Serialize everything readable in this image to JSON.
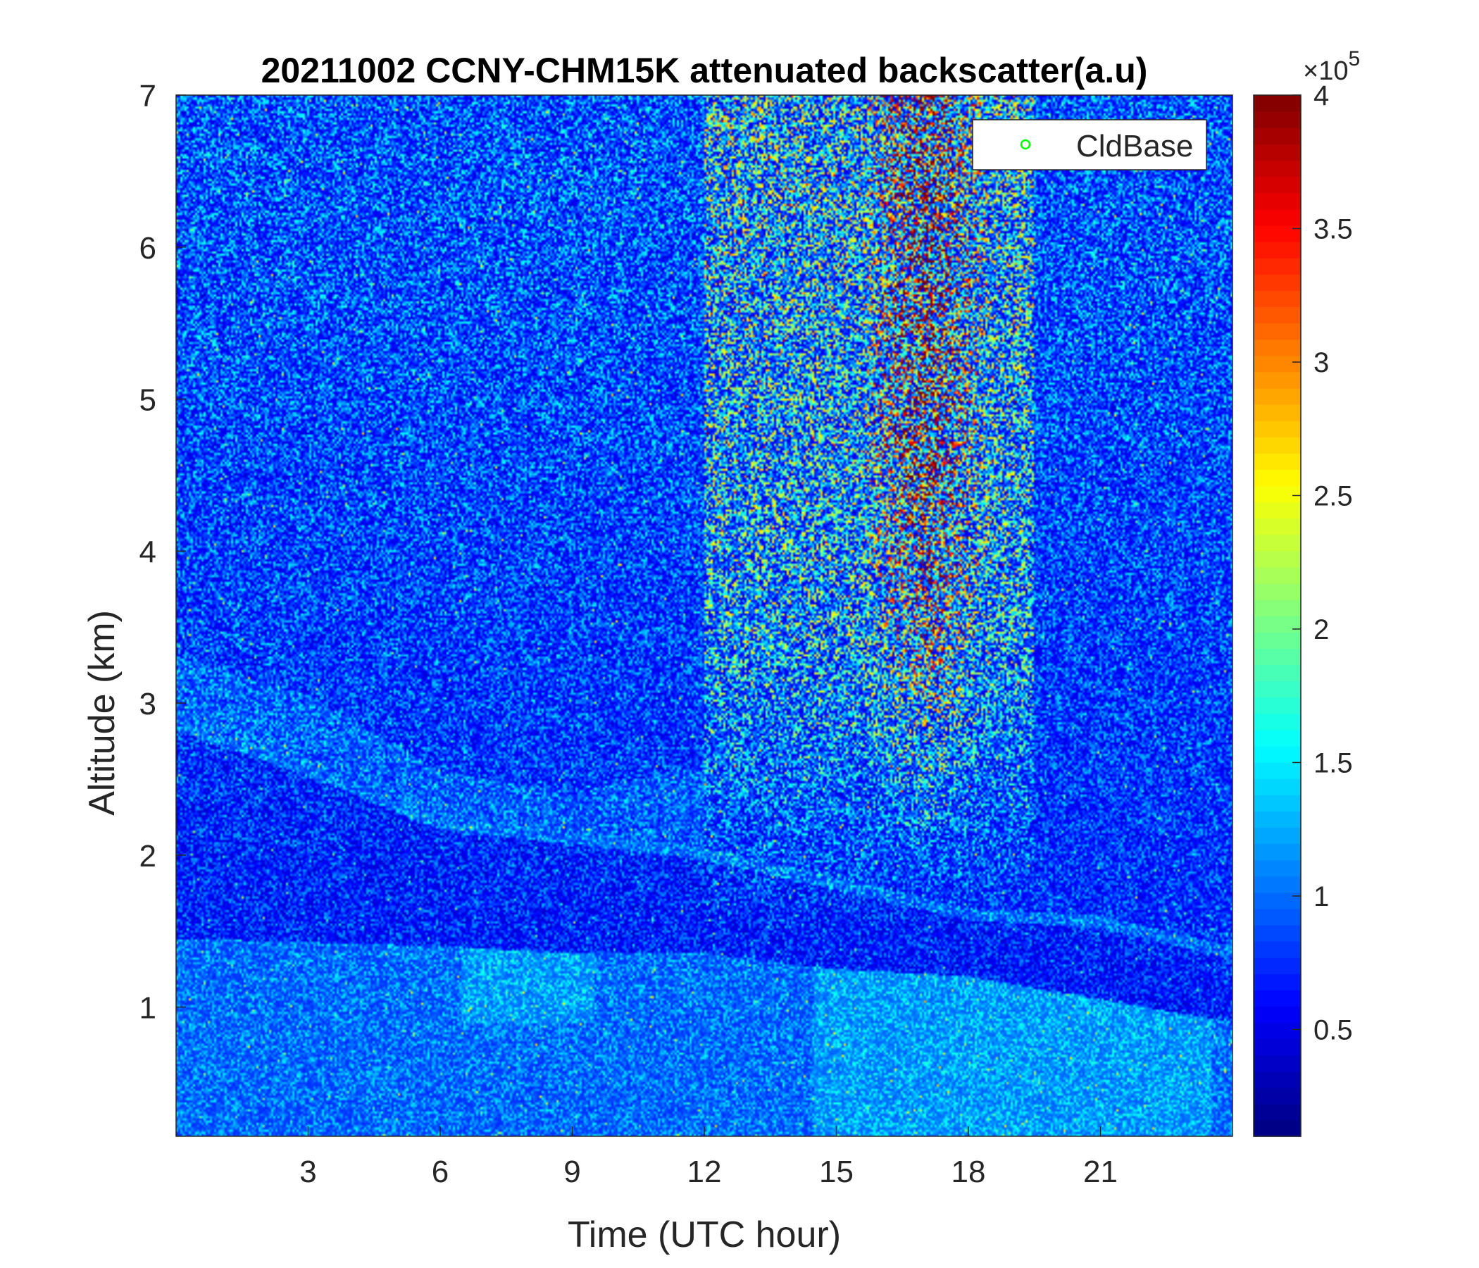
{
  "chart_data": {
    "type": "heatmap",
    "title": "20211002 CCNY-CHM15K attenuated backscatter(a.u)",
    "xlabel": "Time (UTC hour)",
    "ylabel": "Altitude (km)",
    "xlim": [
      0,
      24
    ],
    "ylim": [
      0.15,
      7
    ],
    "xticks": [
      3,
      6,
      9,
      12,
      15,
      18,
      21
    ],
    "yticks": [
      1,
      2,
      3,
      4,
      5,
      6,
      7
    ],
    "colormap": "jet",
    "clim": [
      0,
      400000
    ],
    "colorbar": {
      "ticks": [
        0.5,
        1,
        1.5,
        2,
        2.5,
        3,
        3.5,
        4
      ],
      "tick_labels": [
        "0.5",
        "1",
        "1.5",
        "2",
        "2.5",
        "3",
        "3.5",
        "4"
      ],
      "multiplier_prefix": "×10",
      "multiplier_exponent": "5",
      "range": [
        0.1,
        4
      ]
    },
    "legend": {
      "entries": [
        {
          "name": "CldBase",
          "marker": "circle",
          "color": "#00ff00"
        }
      ],
      "placement": "top-right"
    },
    "features": {
      "boundary_layer_top_km": [
        [
          0,
          1.45
        ],
        [
          6,
          1.4
        ],
        [
          9,
          1.35
        ],
        [
          12,
          1.35
        ],
        [
          15,
          1.25
        ],
        [
          18,
          1.2
        ],
        [
          21,
          1.05
        ],
        [
          24,
          0.9
        ]
      ],
      "residual_layer_top_km": [
        [
          0,
          2.9
        ],
        [
          3,
          2.6
        ],
        [
          6,
          2.25
        ],
        [
          9,
          2.15
        ],
        [
          12,
          2.05
        ],
        [
          15,
          1.85
        ],
        [
          18,
          1.65
        ],
        [
          21,
          1.6
        ],
        [
          24,
          1.4
        ]
      ],
      "upper_layer_top_km": [
        [
          0,
          3.3
        ],
        [
          3,
          3.05
        ],
        [
          6,
          2.55
        ],
        [
          9,
          2.4
        ],
        [
          12,
          2.6
        ]
      ],
      "high_noise_region_hours": [
        12,
        19.5
      ],
      "peak_signal_region_hours": [
        15.5,
        18.5
      ]
    },
    "grid": false
  },
  "colors": {
    "background_low": "#0a1aa0",
    "noise_high": "#8b0000",
    "legend_marker": "#00ff00"
  }
}
